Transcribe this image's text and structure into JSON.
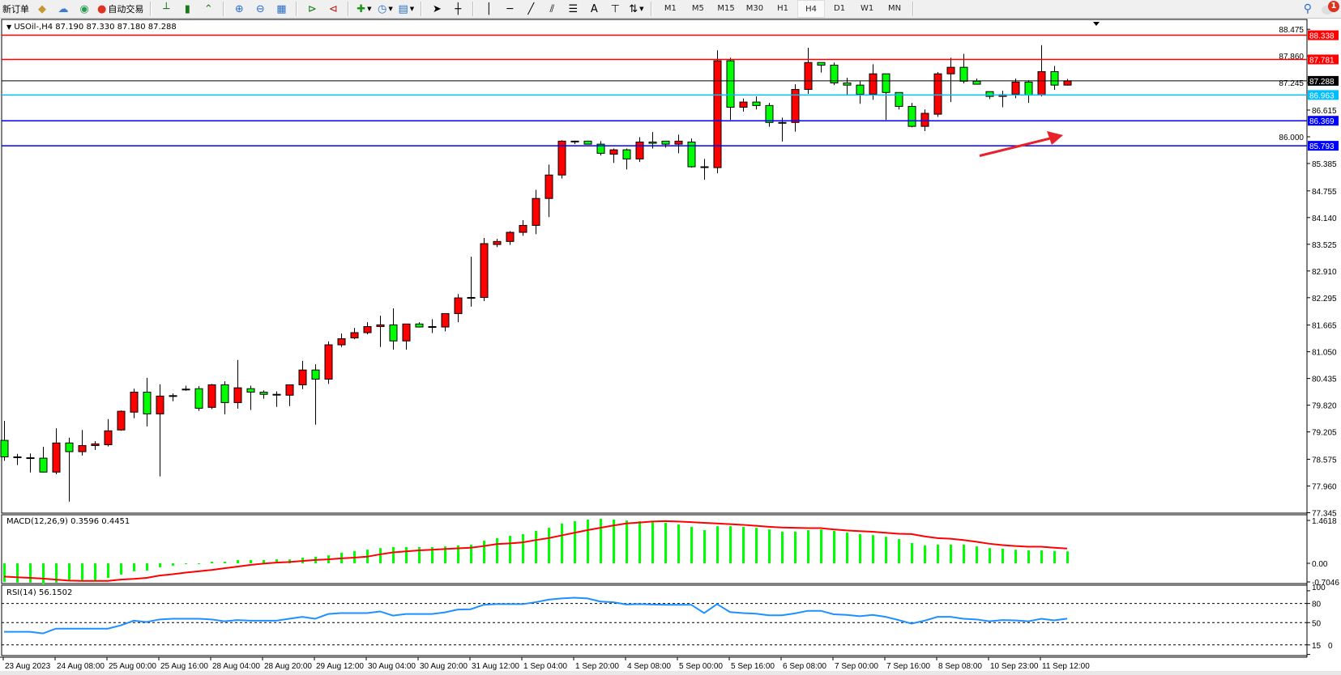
{
  "toolbar": {
    "new_order_label": "新订单",
    "auto_trading_label": "自动交易",
    "icons": [
      "gold-bars-icon",
      "cloud-server-icon",
      "signal-icon",
      "auto-trading-icon",
      "bar-chart-icon",
      "candlestick-icon",
      "line-chart-icon",
      "zoom-in-icon",
      "zoom-out-icon",
      "tile-windows-icon",
      "auto-scroll-icon",
      "chart-shift-icon",
      "indicators-icon",
      "periods-clock-icon",
      "templates-icon",
      "cursor-icon",
      "crosshair-icon",
      "vertical-line-icon",
      "horizontal-line-icon",
      "trendline-icon",
      "equidistant-channel-icon",
      "fibonacci-icon",
      "text-icon",
      "text-label-icon",
      "arrows-icon"
    ],
    "text_tool": "A",
    "periods": [
      "M1",
      "M5",
      "M15",
      "M30",
      "H1",
      "H4",
      "D1",
      "W1",
      "MN"
    ],
    "active_period": "H4",
    "notification_count": "1"
  },
  "chart": {
    "header": "USOil-,H4  87.190 87.330 87.180 87.288",
    "symbol": "USOil-",
    "timeframe": "H4",
    "ohlc_current": {
      "open": 87.19,
      "high": 87.33,
      "low": 87.18,
      "close": 87.288
    },
    "colors": {
      "bull": "#ff0000",
      "bear": "#00ff00",
      "outline": "#000000",
      "macd_hist": "#00ff00",
      "macd_signal": "#ff0000",
      "rsi": "#1e90ff",
      "annotation_arrow": "#e8212b"
    },
    "price_axis_ticks": [
      "88.475",
      "87.860",
      "87.245",
      "86.615",
      "86.000",
      "85.385",
      "84.755",
      "84.140",
      "83.525",
      "82.910",
      "82.295",
      "81.665",
      "81.050",
      "80.435",
      "79.820",
      "79.205",
      "78.575",
      "77.960",
      "77.345"
    ],
    "price_range": [
      77.345,
      88.475
    ],
    "horizontal_lines": [
      {
        "price": "88.338",
        "color": "#ff0000"
      },
      {
        "price": "87.781",
        "color": "#ff0000"
      },
      {
        "price": "87.288",
        "color": "#000000"
      },
      {
        "price": "86.963",
        "color": "#00bfff"
      },
      {
        "price": "86.369",
        "color": "#0000ff"
      },
      {
        "price": "85.793",
        "color": "#0000ff"
      }
    ],
    "candles": [
      [
        79.01,
        79.46,
        78.54,
        78.63
      ],
      [
        78.63,
        78.7,
        78.44,
        78.62
      ],
      [
        78.61,
        78.71,
        78.27,
        78.6
      ],
      [
        78.6,
        78.86,
        78.27,
        78.28
      ],
      [
        78.28,
        79.29,
        78.23,
        78.95
      ],
      [
        78.95,
        79.07,
        77.6,
        78.75
      ],
      [
        78.75,
        79.25,
        78.66,
        78.89
      ],
      [
        78.89,
        78.99,
        78.79,
        78.93
      ],
      [
        78.91,
        79.5,
        78.87,
        79.23
      ],
      [
        79.25,
        79.7,
        79.23,
        79.68
      ],
      [
        79.66,
        80.2,
        79.52,
        80.12
      ],
      [
        80.12,
        80.45,
        79.33,
        79.62
      ],
      [
        79.62,
        80.3,
        78.18,
        80.03
      ],
      [
        80.03,
        80.09,
        79.91,
        80.04
      ],
      [
        80.18,
        80.27,
        80.15,
        80.19
      ],
      [
        80.2,
        80.26,
        79.69,
        79.75
      ],
      [
        79.77,
        80.31,
        79.73,
        80.29
      ],
      [
        80.29,
        80.37,
        79.61,
        79.88
      ],
      [
        79.88,
        80.86,
        79.74,
        80.22
      ],
      [
        80.2,
        80.27,
        79.71,
        80.12
      ],
      [
        80.12,
        80.16,
        79.97,
        80.07
      ],
      [
        80.06,
        80.14,
        79.78,
        80.07
      ],
      [
        80.05,
        80.29,
        79.8,
        80.29
      ],
      [
        80.29,
        80.84,
        80.19,
        80.63
      ],
      [
        80.63,
        80.76,
        79.37,
        80.42
      ],
      [
        80.42,
        81.29,
        80.31,
        81.21
      ],
      [
        81.21,
        81.47,
        81.16,
        81.35
      ],
      [
        81.37,
        81.6,
        81.34,
        81.49
      ],
      [
        81.49,
        81.73,
        81.45,
        81.63
      ],
      [
        81.63,
        81.88,
        81.16,
        81.67
      ],
      [
        81.67,
        82.05,
        81.1,
        81.3
      ],
      [
        81.3,
        81.69,
        81.1,
        81.69
      ],
      [
        81.69,
        81.73,
        81.61,
        81.62
      ],
      [
        81.63,
        81.8,
        81.48,
        81.63
      ],
      [
        81.62,
        81.93,
        81.52,
        81.93
      ],
      [
        81.93,
        82.38,
        81.73,
        82.29
      ],
      [
        82.29,
        83.24,
        82.09,
        82.3
      ],
      [
        82.3,
        83.67,
        82.22,
        83.54
      ],
      [
        83.52,
        83.65,
        83.46,
        83.59
      ],
      [
        83.59,
        83.83,
        83.51,
        83.8
      ],
      [
        83.8,
        84.08,
        83.72,
        83.96
      ],
      [
        83.96,
        84.78,
        83.76,
        84.58
      ],
      [
        84.58,
        85.36,
        84.15,
        85.12
      ],
      [
        85.12,
        85.92,
        85.04,
        85.9
      ],
      [
        85.9,
        85.91,
        85.83,
        85.9
      ],
      [
        85.9,
        85.91,
        85.83,
        85.83
      ],
      [
        85.83,
        85.9,
        85.57,
        85.62
      ],
      [
        85.6,
        85.73,
        85.4,
        85.7
      ],
      [
        85.7,
        85.73,
        85.25,
        85.49
      ],
      [
        85.49,
        85.99,
        85.42,
        85.88
      ],
      [
        85.88,
        86.11,
        85.73,
        85.85
      ],
      [
        85.9,
        85.9,
        85.75,
        85.83
      ],
      [
        85.83,
        86.05,
        85.62,
        85.9
      ],
      [
        85.88,
        85.96,
        85.29,
        85.31
      ],
      [
        85.31,
        85.49,
        85.01,
        85.3
      ],
      [
        85.29,
        87.99,
        85.16,
        87.75
      ],
      [
        87.75,
        87.82,
        86.39,
        86.68
      ],
      [
        86.68,
        86.88,
        86.58,
        86.8
      ],
      [
        86.8,
        86.93,
        86.63,
        86.72
      ],
      [
        86.72,
        86.78,
        86.23,
        86.33
      ],
      [
        86.33,
        86.44,
        85.89,
        86.33
      ],
      [
        86.33,
        87.21,
        86.12,
        87.09
      ],
      [
        87.09,
        88.05,
        86.99,
        87.71
      ],
      [
        87.71,
        87.71,
        87.48,
        87.65
      ],
      [
        87.65,
        87.71,
        87.19,
        87.24
      ],
      [
        87.24,
        87.36,
        86.96,
        87.19
      ],
      [
        87.19,
        87.28,
        86.76,
        86.98
      ],
      [
        86.98,
        87.67,
        86.85,
        87.45
      ],
      [
        87.45,
        87.45,
        86.39,
        87.02
      ],
      [
        87.02,
        87.02,
        86.63,
        86.7
      ],
      [
        86.7,
        86.78,
        86.22,
        86.24
      ],
      [
        86.24,
        86.63,
        86.13,
        86.54
      ],
      [
        86.52,
        87.49,
        86.46,
        87.45
      ],
      [
        87.45,
        87.82,
        86.8,
        87.6
      ],
      [
        87.6,
        87.91,
        87.23,
        87.28
      ],
      [
        87.28,
        87.34,
        87.21,
        87.21
      ],
      [
        87.04,
        87.04,
        86.87,
        86.93
      ],
      [
        86.93,
        87.06,
        86.68,
        86.97
      ],
      [
        86.98,
        87.34,
        86.89,
        87.26
      ],
      [
        87.26,
        87.3,
        86.78,
        86.96
      ],
      [
        86.96,
        88.11,
        86.93,
        87.5
      ],
      [
        87.5,
        87.63,
        87.08,
        87.19
      ],
      [
        87.19,
        87.33,
        87.18,
        87.288
      ]
    ],
    "time_labels": [
      "23 Aug 2023",
      "24 Aug 08:00",
      "25 Aug 00:00",
      "25 Aug 16:00",
      "28 Aug 04:00",
      "28 Aug 20:00",
      "29 Aug 12:00",
      "30 Aug 04:00",
      "30 Aug 20:00",
      "31 Aug 12:00",
      "1 Sep 04:00",
      "1 Sep 20:00",
      "4 Sep 08:00",
      "5 Sep 00:00",
      "5 Sep 16:00",
      "6 Sep 08:00",
      "7 Sep 00:00",
      "7 Sep 16:00",
      "8 Sep 08:00",
      "10 Sep 23:00",
      "11 Sep 12:00"
    ]
  },
  "macd": {
    "label": "MACD(12,26,9) 0.3596 0.4451",
    "axis_ticks": [
      "1.4618",
      "0.00",
      "-0.7046"
    ],
    "histogram": [
      -0.56,
      -0.58,
      -0.58,
      -0.63,
      -0.58,
      -0.54,
      -0.54,
      -0.54,
      -0.44,
      -0.34,
      -0.24,
      -0.22,
      -0.12,
      -0.07,
      -0.02,
      -0.02,
      0.05,
      0.05,
      0.1,
      0.1,
      0.1,
      0.12,
      0.12,
      0.17,
      0.2,
      0.24,
      0.32,
      0.37,
      0.41,
      0.46,
      0.49,
      0.49,
      0.49,
      0.49,
      0.51,
      0.54,
      0.56,
      0.68,
      0.76,
      0.83,
      0.88,
      0.98,
      1.07,
      1.2,
      1.27,
      1.32,
      1.34,
      1.32,
      1.29,
      1.27,
      1.24,
      1.22,
      1.17,
      1.1,
      1.0,
      1.12,
      1.12,
      1.1,
      1.07,
      1.02,
      0.95,
      0.95,
      1.0,
      1.02,
      0.98,
      0.93,
      0.88,
      0.85,
      0.8,
      0.73,
      0.61,
      0.54,
      0.56,
      0.56,
      0.56,
      0.51,
      0.46,
      0.44,
      0.41,
      0.39,
      0.39,
      0.37,
      0.3596
    ],
    "signal": [
      -0.4,
      -0.42,
      -0.44,
      -0.46,
      -0.49,
      -0.52,
      -0.53,
      -0.53,
      -0.53,
      -0.49,
      -0.47,
      -0.44,
      -0.37,
      -0.33,
      -0.28,
      -0.24,
      -0.2,
      -0.15,
      -0.1,
      -0.05,
      -0.01,
      0.02,
      0.04,
      0.07,
      0.1,
      0.12,
      0.15,
      0.17,
      0.2,
      0.27,
      0.33,
      0.36,
      0.39,
      0.41,
      0.43,
      0.45,
      0.47,
      0.52,
      0.58,
      0.6,
      0.63,
      0.7,
      0.76,
      0.84,
      0.92,
      1.0,
      1.07,
      1.14,
      1.2,
      1.23,
      1.26,
      1.27,
      1.26,
      1.24,
      1.22,
      1.2,
      1.18,
      1.16,
      1.13,
      1.1,
      1.08,
      1.07,
      1.06,
      1.06,
      1.02,
      0.99,
      0.97,
      0.95,
      0.92,
      0.89,
      0.88,
      0.81,
      0.76,
      0.74,
      0.7,
      0.65,
      0.59,
      0.55,
      0.52,
      0.5,
      0.5,
      0.47,
      0.4451
    ]
  },
  "rsi": {
    "label": "RSI(14) 56.1502",
    "axis_ticks": [
      "100",
      "80",
      "50",
      "15",
      "0"
    ],
    "levels": [
      80,
      50,
      15
    ],
    "values": [
      35.5,
      35.5,
      35.5,
      33,
      40.5,
      40.5,
      40.5,
      40.5,
      40.5,
      45.6,
      53,
      51,
      55,
      56,
      56,
      56,
      55,
      52,
      54,
      53,
      53,
      53,
      56,
      59,
      56,
      63.5,
      65,
      65,
      65,
      67.5,
      61,
      63.5,
      63.5,
      63.5,
      66,
      70.5,
      71,
      78,
      79,
      79,
      79,
      82,
      86,
      88,
      89,
      88,
      83,
      82,
      78.5,
      79,
      78.5,
      78,
      78,
      78,
      65,
      79,
      66.5,
      65,
      64,
      61.5,
      61.5,
      64.5,
      68.5,
      68.5,
      63,
      62,
      60,
      62,
      59,
      54,
      48.5,
      53,
      59,
      59,
      56,
      55,
      52,
      54,
      53.5,
      52,
      56,
      53.5,
      56.15
    ]
  }
}
